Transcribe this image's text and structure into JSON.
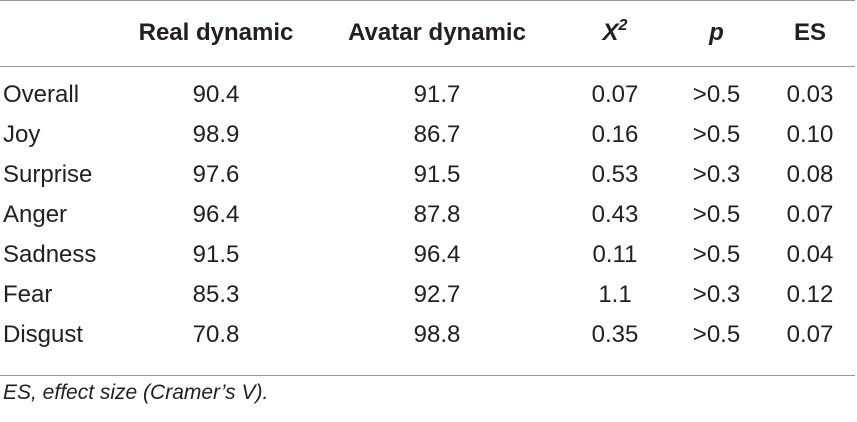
{
  "table": {
    "headers": [
      "",
      "Real dynamic",
      "Avatar dynamic",
      "X",
      "p",
      "ES"
    ],
    "chi_superscript": "2",
    "rows": [
      {
        "label": "Overall",
        "real": "90.4",
        "avatar": "91.7",
        "chi2": "0.07",
        "p": ">0.5",
        "es": "0.03"
      },
      {
        "label": "Joy",
        "real": "98.9",
        "avatar": "86.7",
        "chi2": "0.16",
        "p": ">0.5",
        "es": "0.10"
      },
      {
        "label": "Surprise",
        "real": "97.6",
        "avatar": "91.5",
        "chi2": "0.53",
        "p": ">0.3",
        "es": "0.08"
      },
      {
        "label": "Anger",
        "real": "96.4",
        "avatar": "87.8",
        "chi2": "0.43",
        "p": ">0.5",
        "es": "0.07"
      },
      {
        "label": "Sadness",
        "real": "91.5",
        "avatar": "96.4",
        "chi2": "0.11",
        "p": ">0.5",
        "es": "0.04"
      },
      {
        "label": "Fear",
        "real": "85.3",
        "avatar": "92.7",
        "chi2": "1.1",
        "p": ">0.3",
        "es": "0.12"
      },
      {
        "label": "Disgust",
        "real": "70.8",
        "avatar": "98.8",
        "chi2": "0.35",
        "p": ">0.5",
        "es": "0.07"
      }
    ]
  },
  "footnote": "ES, effect size (Cramer’s V)."
}
